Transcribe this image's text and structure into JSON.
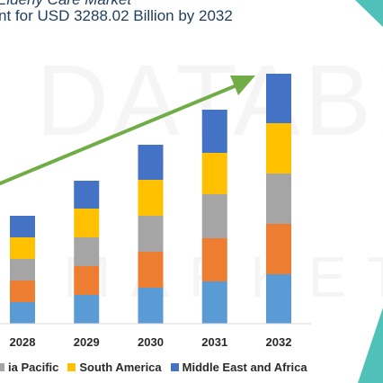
{
  "header": {
    "title_top_cropped": "Elderly Care Market",
    "title": "nt for USD 3288.02 Billion by 2032"
  },
  "watermark": {
    "text_top": "DATABR",
    "text_bottom": "MARKETRE"
  },
  "colors": {
    "North America": "#5b9bd5",
    "Europe": "#ed7d31",
    "Asia Pacific": "#a5a5a5",
    "South America": "#ffc000",
    "Middle East and Africa": "#4472c4",
    "trend_arrow": "#70ad47",
    "decor_teal": "#4fc1b9"
  },
  "legend": [
    {
      "label": "ia Pacific",
      "color": "#a5a5a5"
    },
    {
      "label": "South America",
      "color": "#ffc000"
    },
    {
      "label": "Middle East and Africa",
      "color": "#4472c4"
    }
  ],
  "chart_data": {
    "type": "bar",
    "stacked": true,
    "categories": [
      "2028",
      "2029",
      "2030",
      "2031",
      "2032"
    ],
    "series": [
      {
        "name": "",
        "values": [
          24,
          32,
          40,
          47,
          55
        ]
      },
      {
        "name": "",
        "values": [
          24,
          32,
          40,
          48,
          56
        ]
      },
      {
        "name": "Asia Pacific",
        "values": [
          24,
          32,
          40,
          49,
          56
        ]
      },
      {
        "name": "South America",
        "values": [
          24,
          32,
          40,
          46,
          56
        ]
      },
      {
        "name": "Middle East and Africa",
        "values": [
          24,
          31,
          39,
          48,
          55
        ]
      }
    ],
    "ylim": [
      0,
      280
    ],
    "grid": false,
    "legend_position": "bottom",
    "trend_arrow": true
  }
}
